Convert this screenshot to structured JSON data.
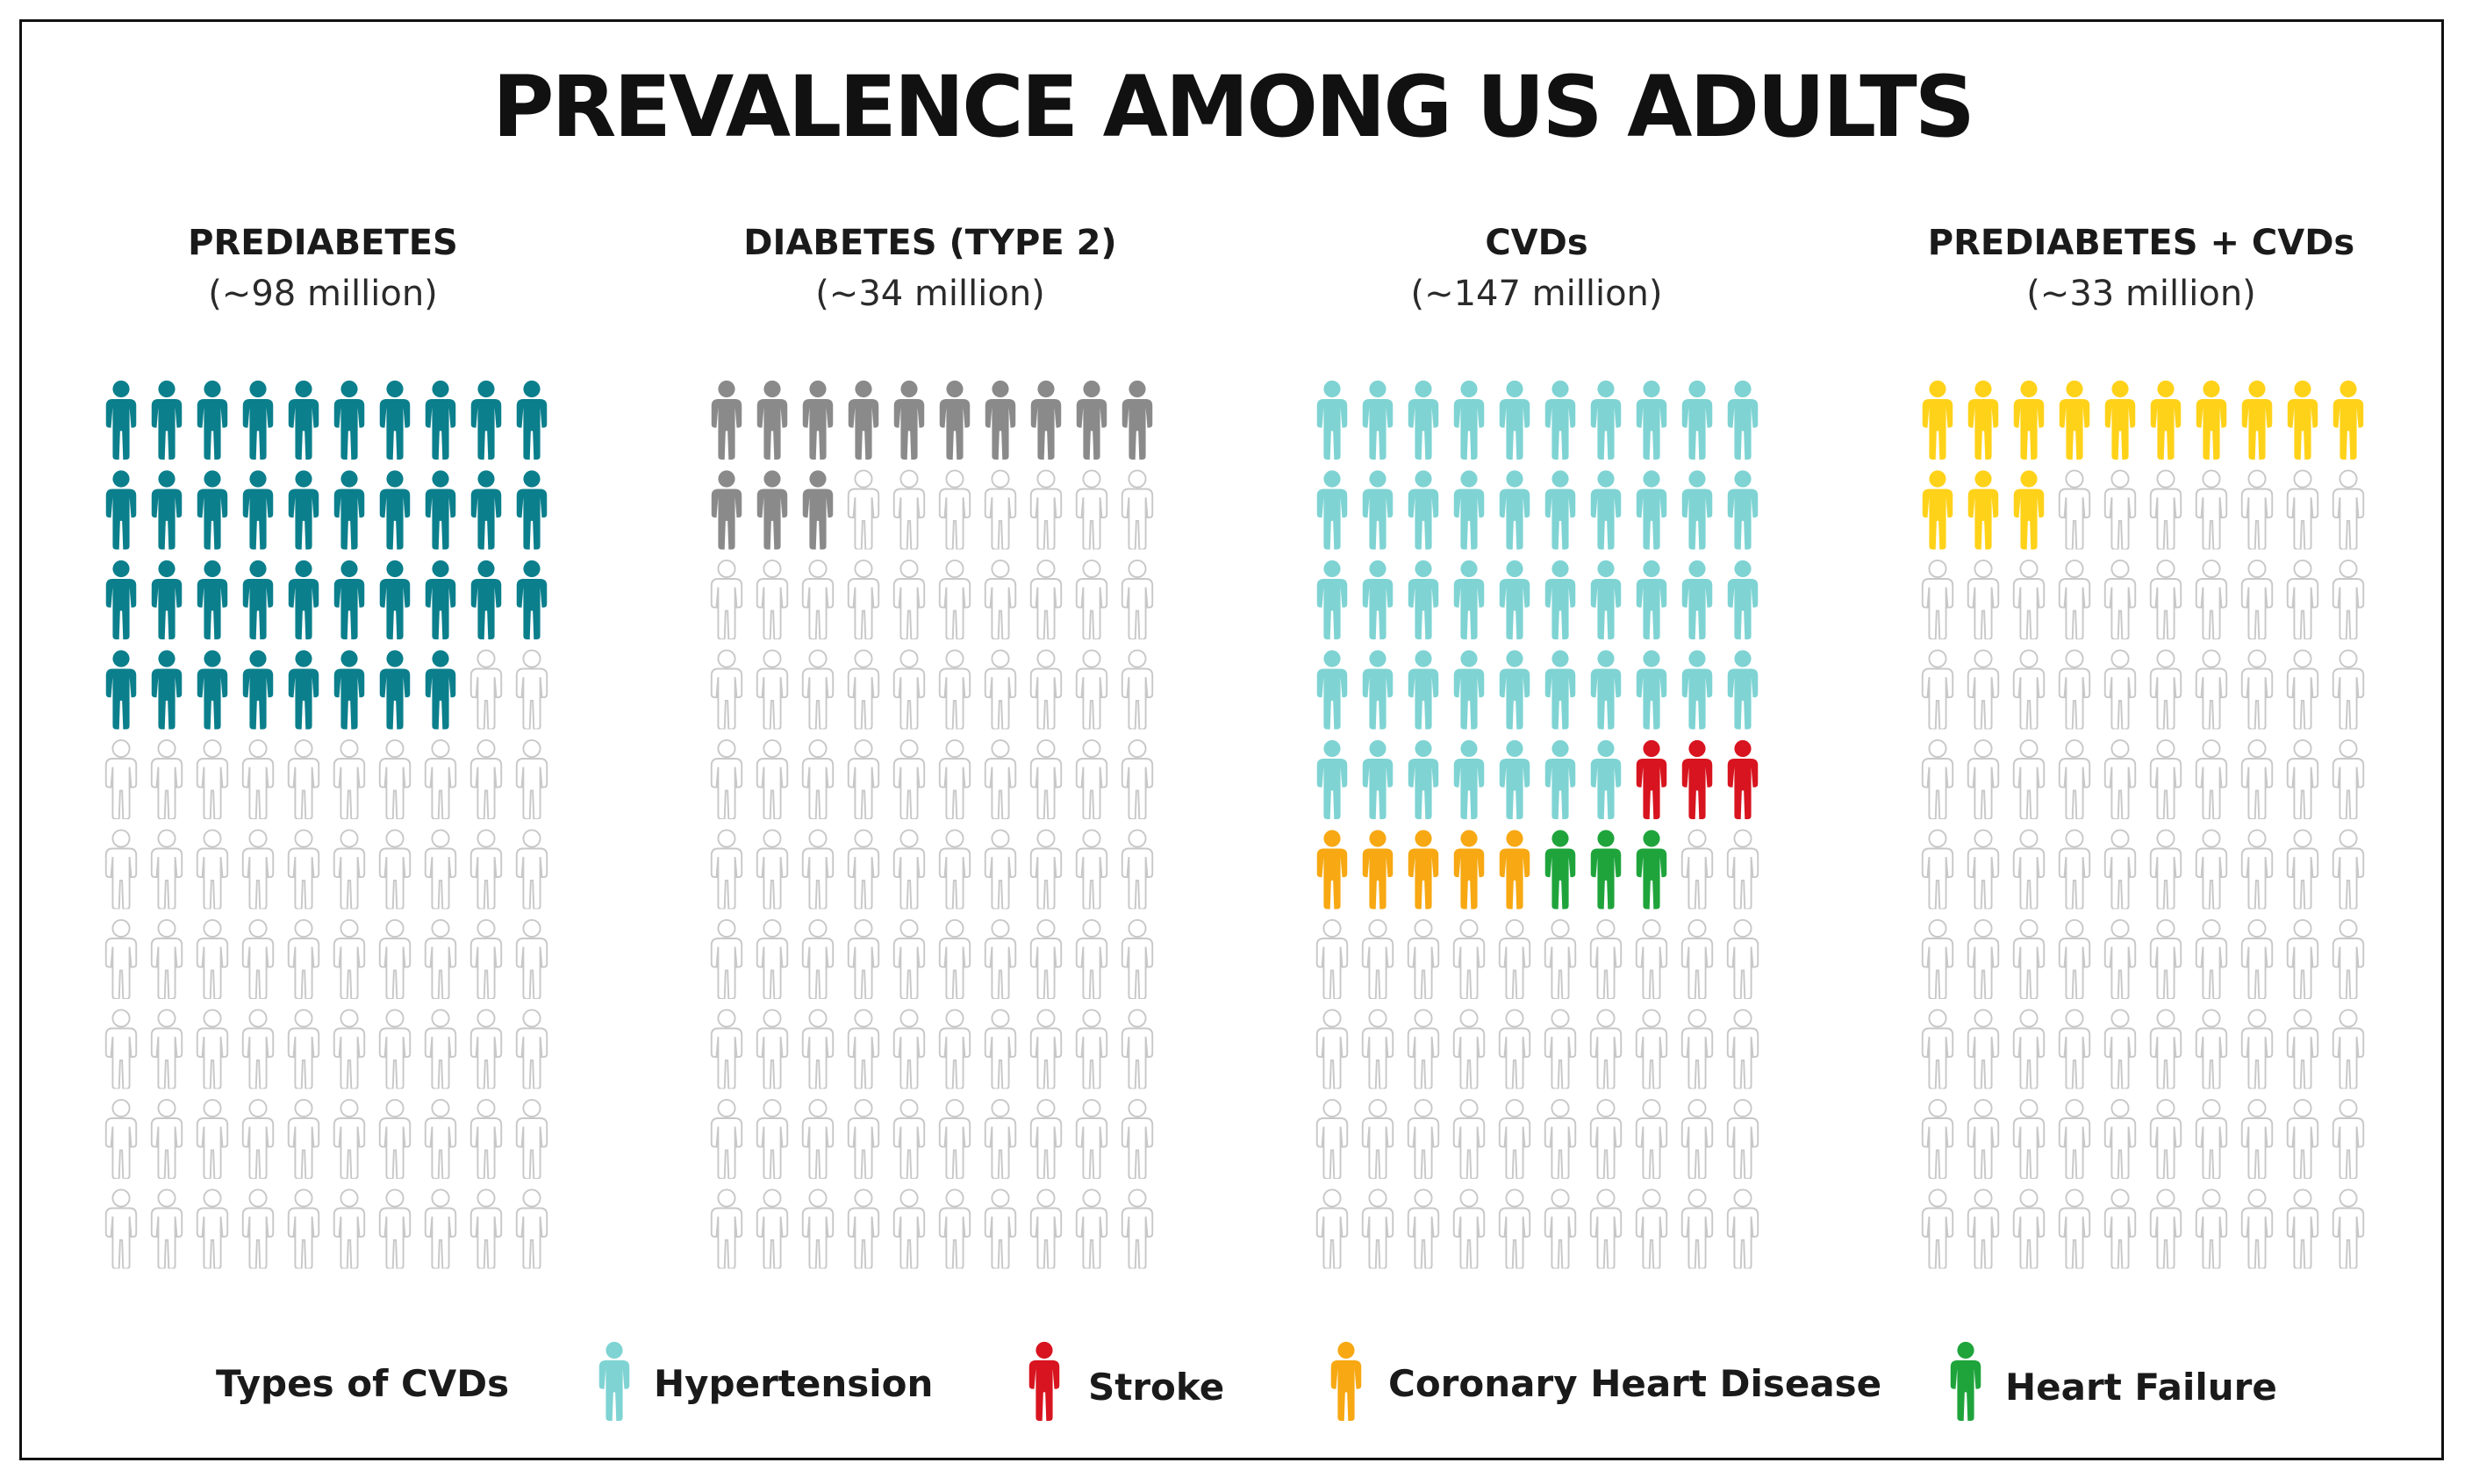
{
  "chart_data": {
    "type": "pictogram",
    "title": "PREVALENCE AMONG US ADULTS",
    "units_per_icon": 1,
    "icons_per_panel": 100,
    "grid": "10 x 10",
    "panels": [
      {
        "label": "PREDIABETES",
        "sublabel": "(~98 million)",
        "segments": [
          {
            "category": "Prediabetes",
            "count": 38,
            "color": "#0b7f8c"
          }
        ]
      },
      {
        "label": "DIABETES (TYPE 2)",
        "sublabel": "(~34 million)",
        "segments": [
          {
            "category": "Diabetes (Type 2)",
            "count": 13,
            "color": "#8a8a8a"
          }
        ]
      },
      {
        "label": "CVDs",
        "sublabel": "(~147 million)",
        "segments": [
          {
            "category": "Hypertension",
            "count": 47,
            "color": "#7fd3d3"
          },
          {
            "category": "Stroke",
            "count": 3,
            "color": "#d7141f"
          },
          {
            "category": "Coronary Heart Disease",
            "count": 5,
            "color": "#f7a812"
          },
          {
            "category": "Heart Failure",
            "count": 3,
            "color": "#1fa43c"
          }
        ]
      },
      {
        "label": "PREDIABETES + CVDs",
        "sublabel": "(~33 million)",
        "segments": [
          {
            "category": "Prediabetes + CVDs",
            "count": 13,
            "color": "#ffd21a"
          }
        ]
      }
    ],
    "empty_icon_color": "#c8c8c8",
    "legend": {
      "title": "Types of CVDs",
      "items": [
        {
          "label": "Hypertension",
          "color": "#7fd3d3"
        },
        {
          "label": "Stroke",
          "color": "#d7141f"
        },
        {
          "label": "Coronary Heart Disease",
          "color": "#f7a812"
        },
        {
          "label": "Heart Failure",
          "color": "#1fa43c"
        }
      ]
    }
  }
}
